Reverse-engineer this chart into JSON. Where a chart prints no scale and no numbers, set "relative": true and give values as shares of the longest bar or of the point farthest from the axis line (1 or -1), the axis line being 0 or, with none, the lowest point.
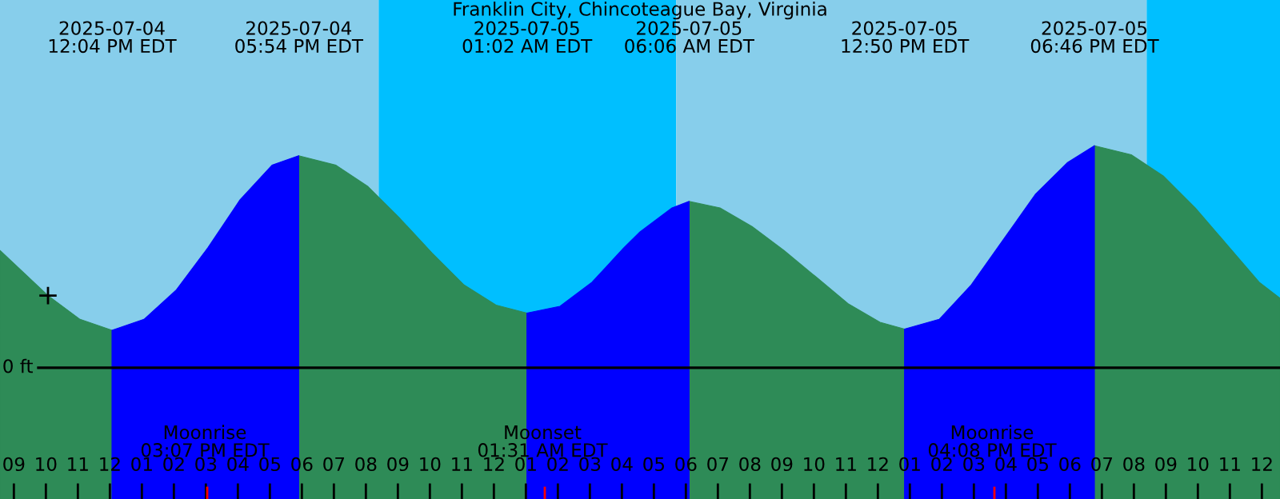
{
  "chart_data": {
    "type": "area",
    "title": "Franklin City, Chincoteague Bay, Virginia",
    "relative": true,
    "x": [
      "2025-07-04T08:34",
      "2025-07-04T10:04",
      "2025-07-04T11:04",
      "2025-07-04T12:04",
      "2025-07-04T13:04",
      "2025-07-04T14:04",
      "2025-07-04T15:04",
      "2025-07-04T16:04",
      "2025-07-04T17:04",
      "2025-07-04T17:54",
      "2025-07-04T19:04",
      "2025-07-04T20:04",
      "2025-07-04T21:04",
      "2025-07-04T22:04",
      "2025-07-04T23:04",
      "2025-07-05T00:04",
      "2025-07-05T01:02",
      "2025-07-05T02:04",
      "2025-07-05T03:04",
      "2025-07-05T04:04",
      "2025-07-05T04:34",
      "2025-07-05T05:34",
      "2025-07-05T06:06",
      "2025-07-05T07:04",
      "2025-07-05T08:04",
      "2025-07-05T09:04",
      "2025-07-05T10:04",
      "2025-07-05T11:04",
      "2025-07-05T12:04",
      "2025-07-05T12:50",
      "2025-07-05T13:55",
      "2025-07-05T14:55",
      "2025-07-05T15:55",
      "2025-07-05T16:55",
      "2025-07-05T17:55",
      "2025-07-05T18:46",
      "2025-07-05T19:55",
      "2025-07-05T20:55",
      "2025-07-05T21:55",
      "2025-07-05T22:55",
      "2025-07-05T23:55",
      "2025-07-06T00:34"
    ],
    "series": [
      {
        "color": "#2e8b57",
        "values": [
          0.528,
          0.325,
          0.218,
          0.169,
          null,
          null,
          null,
          null,
          null,
          0.955,
          0.912,
          0.816,
          0.672,
          0.517,
          0.373,
          0.282,
          0.246,
          null,
          null,
          null,
          null,
          null,
          0.749,
          0.72,
          0.636,
          0.528,
          0.409,
          0.289,
          0.205,
          0.174,
          null,
          null,
          null,
          null,
          null,
          1.0,
          0.959,
          0.864,
          0.72,
          0.553,
          0.385,
          0.313
        ]
      },
      {
        "color": "#0000ff",
        "values": [
          null,
          null,
          null,
          0.169,
          0.218,
          0.349,
          0.541,
          0.756,
          0.912,
          0.955,
          null,
          null,
          null,
          null,
          null,
          null,
          0.246,
          0.277,
          0.385,
          0.541,
          0.612,
          0.72,
          0.749,
          null,
          null,
          null,
          null,
          null,
          null,
          0.174,
          0.218,
          0.373,
          0.576,
          0.78,
          0.923,
          1.0,
          null,
          null,
          null,
          null,
          null,
          null
        ]
      },
      {
        "type": "scatter",
        "color": "#000000",
        "marker": "cross",
        "x": [
          "2025-07-04T10:04"
        ],
        "values": [
          0.325
        ]
      }
    ],
    "xlim": [
      "2025-07-04T08:34",
      "2025-07-06T00:34"
    ],
    "xticks": [
      {
        "value": "2025-07-04T09:00",
        "label": "09"
      },
      {
        "value": "2025-07-04T10:00",
        "label": "10"
      },
      {
        "value": "2025-07-04T11:00",
        "label": "11"
      },
      {
        "value": "2025-07-04T12:00",
        "label": "12"
      },
      {
        "value": "2025-07-04T13:00",
        "label": "01"
      },
      {
        "value": "2025-07-04T14:00",
        "label": "02"
      },
      {
        "value": "2025-07-04T15:00",
        "label": "03"
      },
      {
        "value": "2025-07-04T16:00",
        "label": "04"
      },
      {
        "value": "2025-07-04T17:00",
        "label": "05"
      },
      {
        "value": "2025-07-04T18:00",
        "label": "06"
      },
      {
        "value": "2025-07-04T19:00",
        "label": "07"
      },
      {
        "value": "2025-07-04T20:00",
        "label": "08"
      },
      {
        "value": "2025-07-04T21:00",
        "label": "09"
      },
      {
        "value": "2025-07-04T22:00",
        "label": "10"
      },
      {
        "value": "2025-07-04T23:00",
        "label": "11"
      },
      {
        "value": "2025-07-05T00:00",
        "label": "12"
      },
      {
        "value": "2025-07-05T01:00",
        "label": "01"
      },
      {
        "value": "2025-07-05T02:00",
        "label": "02"
      },
      {
        "value": "2025-07-05T03:00",
        "label": "03"
      },
      {
        "value": "2025-07-05T04:00",
        "label": "04"
      },
      {
        "value": "2025-07-05T05:00",
        "label": "05"
      },
      {
        "value": "2025-07-05T06:00",
        "label": "06"
      },
      {
        "value": "2025-07-05T07:00",
        "label": "07"
      },
      {
        "value": "2025-07-05T08:00",
        "label": "08"
      },
      {
        "value": "2025-07-05T09:00",
        "label": "09"
      },
      {
        "value": "2025-07-05T10:00",
        "label": "10"
      },
      {
        "value": "2025-07-05T11:00",
        "label": "11"
      },
      {
        "value": "2025-07-05T12:00",
        "label": "12"
      },
      {
        "value": "2025-07-05T13:00",
        "label": "01"
      },
      {
        "value": "2025-07-05T14:00",
        "label": "02"
      },
      {
        "value": "2025-07-05T15:00",
        "label": "03"
      },
      {
        "value": "2025-07-05T16:00",
        "label": "04"
      },
      {
        "value": "2025-07-05T17:00",
        "label": "05"
      },
      {
        "value": "2025-07-05T18:00",
        "label": "06"
      },
      {
        "value": "2025-07-05T19:00",
        "label": "07"
      },
      {
        "value": "2025-07-05T20:00",
        "label": "08"
      },
      {
        "value": "2025-07-05T21:00",
        "label": "09"
      },
      {
        "value": "2025-07-05T22:00",
        "label": "10"
      },
      {
        "value": "2025-07-05T23:00",
        "label": "11"
      },
      {
        "value": "2025-07-06T00:00",
        "label": "12"
      }
    ],
    "ref_lines": [
      {
        "axis": "y",
        "value": 0,
        "label": "0 ft",
        "color": "#000000"
      }
    ],
    "bands": [
      {
        "axis": "x",
        "from": "2025-07-04T08:34",
        "to": "2025-07-04T20:24",
        "color": "#87ceeb"
      },
      {
        "axis": "x",
        "from": "2025-07-04T20:24",
        "to": "2025-07-05T05:42",
        "color": "#00bfff"
      },
      {
        "axis": "x",
        "from": "2025-07-05T05:42",
        "to": "2025-07-05T20:24",
        "color": "#87ceeb"
      },
      {
        "axis": "x",
        "from": "2025-07-05T20:24",
        "to": "2025-07-06T00:34",
        "color": "#00bfff"
      }
    ],
    "annotations": [
      "2025-07-04\n12:04 PM EDT",
      "2025-07-04\n05:54 PM EDT",
      "2025-07-05\n01:02 AM EDT",
      "2025-07-05\n06:06 AM EDT",
      "2025-07-05\n12:50 PM EDT",
      "2025-07-05\n06:46 PM EDT",
      "Moonrise\n03:07 PM EDT",
      "Moonset\n01:31 AM EDT",
      "Moonrise\n04:08 PM EDT"
    ],
    "grid": false,
    "legend": false
  }
}
